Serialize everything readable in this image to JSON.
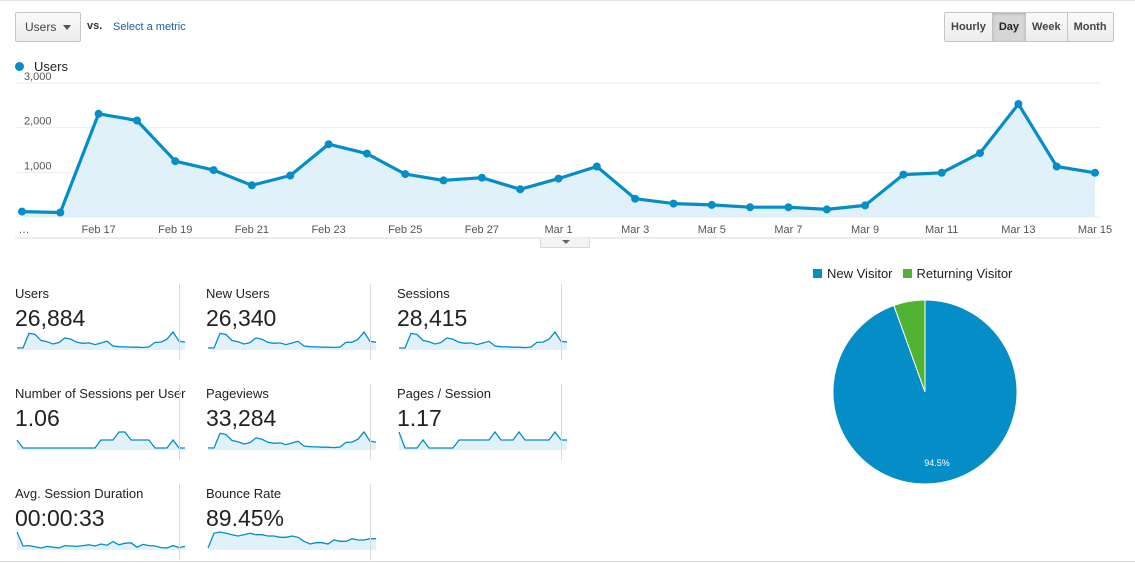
{
  "toolbar": {
    "metric_select": "Users",
    "vs": "vs.",
    "select_metric": "Select a metric",
    "periods": [
      "Hourly",
      "Day",
      "Week",
      "Month"
    ],
    "active_period": "Day"
  },
  "chart_data": [
    {
      "type": "area",
      "series": [
        {
          "name": "Users",
          "color": "#058dc7",
          "values": [
            120,
            100,
            2310,
            2160,
            1250,
            1050,
            710,
            930,
            1630,
            1420,
            960,
            820,
            880,
            620,
            860,
            1130,
            410,
            300,
            270,
            220,
            220,
            170,
            260,
            950,
            990,
            1430,
            2530,
            1130,
            990
          ]
        }
      ],
      "x_tick_labels": [
        "…",
        "Feb 17",
        "Feb 19",
        "Feb 21",
        "Feb 23",
        "Feb 25",
        "Feb 27",
        "Mar 1",
        "Mar 3",
        "Mar 5",
        "Mar 7",
        "Mar 9",
        "Mar 11",
        "Mar 13",
        "Mar 15"
      ],
      "y_tick_labels": [
        "3,000",
        "2,000",
        "1,000"
      ],
      "ylim": [
        0,
        3000
      ],
      "grid": true,
      "legend": "top-left"
    },
    {
      "type": "pie",
      "categories": [
        "New Visitor",
        "Returning Visitor"
      ],
      "values": [
        94.5,
        5.5
      ],
      "colors": [
        "#058dc7",
        "#50b432"
      ],
      "slice_labels": [
        "94.5%",
        ""
      ],
      "legend": "top"
    }
  ],
  "tiles": [
    {
      "label": "Users",
      "value": "26,884",
      "spark": [
        120,
        100,
        2310,
        2160,
        1250,
        1050,
        710,
        930,
        1630,
        1420,
        960,
        820,
        880,
        620,
        860,
        1130,
        410,
        300,
        270,
        220,
        220,
        170,
        260,
        950,
        990,
        1430,
        2530,
        1130,
        990
      ]
    },
    {
      "label": "New Users",
      "value": "26,340",
      "spark": [
        110,
        95,
        2280,
        2120,
        1220,
        1020,
        690,
        910,
        1600,
        1390,
        940,
        800,
        860,
        600,
        840,
        1100,
        400,
        290,
        260,
        210,
        210,
        165,
        250,
        930,
        970,
        1400,
        2490,
        1100,
        970
      ]
    },
    {
      "label": "Sessions",
      "value": "28,415",
      "spark": [
        130,
        110,
        2420,
        2250,
        1310,
        1100,
        750,
        980,
        1710,
        1490,
        1010,
        860,
        920,
        650,
        900,
        1180,
        430,
        320,
        280,
        230,
        230,
        180,
        275,
        1000,
        1040,
        1500,
        2650,
        1180,
        1040
      ]
    },
    {
      "label": "Number of Sessions per User",
      "value": "1.06",
      "spark": [
        1.06,
        1.05,
        1.05,
        1.05,
        1.05,
        1.05,
        1.05,
        1.05,
        1.05,
        1.05,
        1.05,
        1.05,
        1.05,
        1.05,
        1.06,
        1.06,
        1.06,
        1.07,
        1.07,
        1.06,
        1.06,
        1.06,
        1.06,
        1.05,
        1.05,
        1.05,
        1.06,
        1.05,
        1.05
      ]
    },
    {
      "label": "Pageviews",
      "value": "33,284",
      "spark": [
        150,
        130,
        2840,
        2630,
        1530,
        1290,
        870,
        1140,
        2000,
        1740,
        1180,
        1010,
        1080,
        760,
        1060,
        1390,
        500,
        370,
        330,
        270,
        270,
        210,
        320,
        1170,
        1220,
        1760,
        3100,
        1390,
        1220
      ]
    },
    {
      "label": "Pages / Session",
      "value": "1.17",
      "spark": [
        1.18,
        1.16,
        1.16,
        1.16,
        1.17,
        1.16,
        1.16,
        1.16,
        1.16,
        1.16,
        1.17,
        1.17,
        1.17,
        1.17,
        1.17,
        1.17,
        1.18,
        1.17,
        1.17,
        1.17,
        1.18,
        1.17,
        1.17,
        1.17,
        1.17,
        1.17,
        1.18,
        1.17,
        1.17
      ]
    },
    {
      "label": "Avg. Session Duration",
      "value": "00:00:33",
      "spark": [
        70,
        35,
        36,
        33,
        30,
        34,
        32,
        30,
        36,
        35,
        34,
        36,
        38,
        35,
        40,
        37,
        46,
        38,
        42,
        43,
        32,
        39,
        36,
        35,
        31,
        30,
        36,
        31,
        34
      ]
    },
    {
      "label": "Bounce Rate",
      "value": "89.45%",
      "spark": [
        88.5,
        89.6,
        89.7,
        89.6,
        89.5,
        89.4,
        89.5,
        89.6,
        89.5,
        89.5,
        89.4,
        89.4,
        89.3,
        89.3,
        89.4,
        89.3,
        89.0,
        88.8,
        88.9,
        88.9,
        88.8,
        89.1,
        89.0,
        89.0,
        89.2,
        89.1,
        89.1,
        89.2,
        89.2
      ]
    }
  ]
}
